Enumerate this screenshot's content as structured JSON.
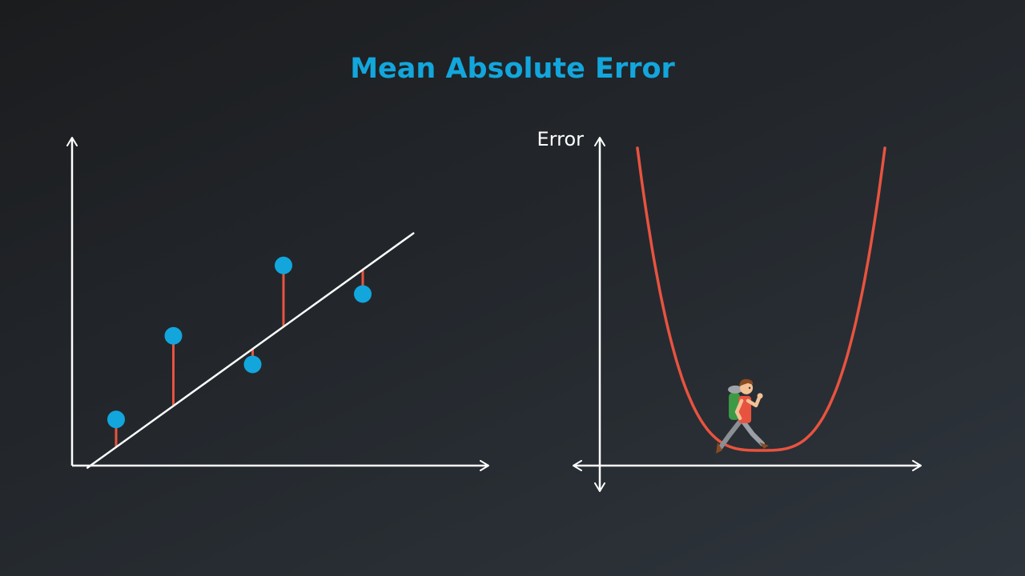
{
  "title": "Mean Absolute Error",
  "colors": {
    "background_top_left": "#1b1c1e",
    "background_bottom_right": "#2e353c",
    "title": "#12a6dc",
    "axis": "#ffffff",
    "regression_line": "#ffffff",
    "data_point": "#12a6dc",
    "error_segment": "#e8533f",
    "error_curve": "#e8533f"
  },
  "regression_plot": {
    "has_axes": true,
    "line_slope": 0.72,
    "line_intercept": -0.3,
    "points": [
      {
        "x": 1.0,
        "y": 1.05
      },
      {
        "x": 2.3,
        "y": 2.95
      },
      {
        "x": 4.1,
        "y": 2.3
      },
      {
        "x": 4.8,
        "y": 4.55
      },
      {
        "x": 6.6,
        "y": 3.9
      }
    ]
  },
  "error_plot": {
    "y_axis_label": "Error",
    "curve": "U-shaped error curve",
    "walker_position": 0.46,
    "walker_icon": "hiker-with-backpack-icon"
  }
}
